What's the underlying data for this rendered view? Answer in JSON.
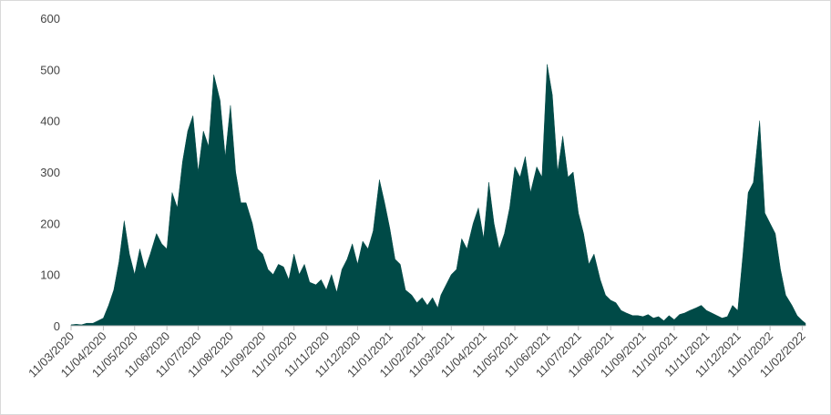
{
  "chart_data": {
    "type": "area",
    "color": "#004a47",
    "x": [
      "11/03/2020",
      "16/03/2020",
      "21/03/2020",
      "26/03/2020",
      "01/04/2020",
      "06/04/2020",
      "11/04/2020",
      "16/04/2020",
      "21/04/2020",
      "26/04/2020",
      "01/05/2020",
      "06/05/2020",
      "11/05/2020",
      "16/05/2020",
      "21/05/2020",
      "26/05/2020",
      "01/06/2020",
      "06/06/2020",
      "11/06/2020",
      "16/06/2020",
      "21/06/2020",
      "26/06/2020",
      "01/07/2020",
      "06/07/2020",
      "11/07/2020",
      "16/07/2020",
      "21/07/2020",
      "26/07/2020",
      "01/08/2020",
      "06/08/2020",
      "11/08/2020",
      "16/08/2020",
      "21/08/2020",
      "26/08/2020",
      "01/09/2020",
      "06/09/2020",
      "11/09/2020",
      "16/09/2020",
      "21/09/2020",
      "26/09/2020",
      "01/10/2020",
      "06/10/2020",
      "11/10/2020",
      "16/10/2020",
      "21/10/2020",
      "26/10/2020",
      "01/11/2020",
      "06/11/2020",
      "11/11/2020",
      "16/11/2020",
      "21/11/2020",
      "26/11/2020",
      "01/12/2020",
      "06/12/2020",
      "11/12/2020",
      "16/12/2020",
      "21/12/2020",
      "26/12/2020",
      "01/01/2021",
      "06/01/2021",
      "11/01/2021",
      "16/01/2021",
      "21/01/2021",
      "26/01/2021",
      "01/02/2021",
      "06/02/2021",
      "11/02/2021",
      "16/02/2021",
      "21/02/2021",
      "26/02/2021",
      "01/03/2021",
      "06/03/2021",
      "11/03/2021",
      "16/03/2021",
      "21/03/2021",
      "26/03/2021",
      "01/04/2021",
      "06/04/2021",
      "11/04/2021",
      "16/04/2021",
      "21/04/2021",
      "26/04/2021",
      "01/05/2021",
      "06/05/2021",
      "11/05/2021",
      "16/05/2021",
      "21/05/2021",
      "26/05/2021",
      "01/06/2021",
      "06/06/2021",
      "11/06/2021",
      "16/06/2021",
      "21/06/2021",
      "26/06/2021",
      "01/07/2021",
      "06/07/2021",
      "11/07/2021",
      "16/07/2021",
      "21/07/2021",
      "26/07/2021",
      "01/08/2021",
      "06/08/2021",
      "11/08/2021",
      "16/08/2021",
      "21/08/2021",
      "26/08/2021",
      "01/09/2021",
      "06/09/2021",
      "11/09/2021",
      "16/09/2021",
      "21/09/2021",
      "26/09/2021",
      "01/10/2021",
      "06/10/2021",
      "11/10/2021",
      "16/10/2021",
      "21/10/2021",
      "26/10/2021",
      "01/11/2021",
      "06/11/2021",
      "11/11/2021",
      "16/11/2021",
      "21/11/2021",
      "26/11/2021",
      "01/12/2021",
      "06/12/2021",
      "11/12/2021",
      "16/12/2021",
      "21/12/2021",
      "26/12/2021",
      "01/01/2022",
      "06/01/2022",
      "11/01/2022",
      "16/01/2022",
      "21/01/2022",
      "26/01/2022",
      "01/02/2022",
      "06/02/2022",
      "11/02/2022",
      "14/02/2022"
    ],
    "values": [
      2,
      3,
      2,
      5,
      5,
      10,
      15,
      40,
      70,
      125,
      205,
      140,
      100,
      150,
      110,
      140,
      180,
      160,
      150,
      260,
      230,
      320,
      380,
      410,
      300,
      380,
      350,
      490,
      440,
      330,
      430,
      300,
      240,
      240,
      200,
      150,
      140,
      110,
      100,
      120,
      115,
      90,
      140,
      100,
      120,
      85,
      80,
      90,
      70,
      100,
      65,
      110,
      130,
      160,
      120,
      165,
      150,
      185,
      285,
      240,
      190,
      130,
      120,
      70,
      60,
      45,
      55,
      40,
      55,
      35,
      60,
      80,
      100,
      110,
      170,
      150,
      200,
      230,
      170,
      280,
      200,
      150,
      180,
      230,
      310,
      290,
      330,
      260,
      310,
      290,
      510,
      450,
      300,
      370,
      290,
      300,
      220,
      180,
      120,
      140,
      90,
      60,
      50,
      45,
      30,
      25,
      20,
      20,
      18,
      22,
      15,
      18,
      10,
      20,
      12,
      22,
      25,
      30,
      35,
      40,
      30,
      25,
      20,
      15,
      18,
      40,
      30,
      140,
      260,
      280,
      400,
      220,
      200,
      180,
      110,
      60,
      40,
      20,
      10,
      5
    ],
    "xlim": [
      "11/03/2020",
      "14/02/2022"
    ],
    "xticks": [
      "11/03/2020",
      "11/04/2020",
      "11/05/2020",
      "11/06/2020",
      "11/07/2020",
      "11/08/2020",
      "11/09/2020",
      "11/10/2020",
      "11/11/2020",
      "11/12/2020",
      "11/01/2021",
      "11/02/2021",
      "11/03/2021",
      "11/04/2021",
      "11/05/2021",
      "11/06/2021",
      "11/07/2021",
      "11/08/2021",
      "11/09/2021",
      "11/10/2021",
      "11/11/2021",
      "11/12/2021",
      "11/01/2022",
      "11/02/2022"
    ],
    "ylim": [
      0,
      600
    ],
    "yticks": [
      0,
      100,
      200,
      300,
      400,
      500,
      600
    ]
  }
}
